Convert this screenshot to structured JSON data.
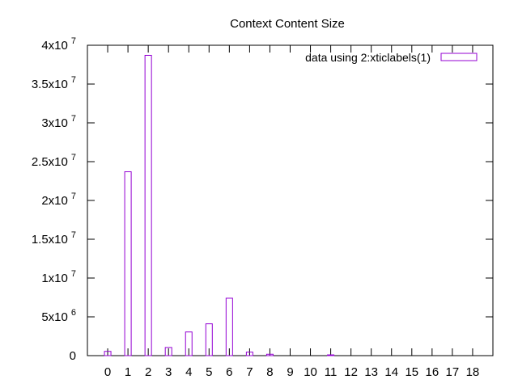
{
  "chart_data": {
    "type": "bar",
    "title": "Context Content Size",
    "xlabel": "",
    "ylabel": "",
    "categories": [
      "0",
      "1",
      "2",
      "3",
      "4",
      "5",
      "6",
      "7",
      "8",
      "9",
      "10",
      "11",
      "12",
      "13",
      "14",
      "15",
      "16",
      "17",
      "18"
    ],
    "series": [
      {
        "name": "data using 2:xticlabels(1)",
        "values": [
          550000,
          23700000,
          38700000,
          1050000,
          3050000,
          4100000,
          7400000,
          450000,
          180000,
          0,
          0,
          100000,
          0,
          0,
          0,
          0,
          0,
          0,
          0
        ]
      }
    ],
    "ylim": [
      0,
      40000000
    ],
    "ytick_values": [
      0,
      5000000,
      10000000,
      15000000,
      20000000,
      25000000,
      30000000,
      35000000,
      40000000
    ],
    "ytick_labels": [
      {
        "base": "0",
        "exp": ""
      },
      {
        "base": "5x10",
        "exp": "6"
      },
      {
        "base": "1x10",
        "exp": "7"
      },
      {
        "base": "1.5x10",
        "exp": "7"
      },
      {
        "base": "2x10",
        "exp": "7"
      },
      {
        "base": "2.5x10",
        "exp": "7"
      },
      {
        "base": "3x10",
        "exp": "7"
      },
      {
        "base": "3.5x10",
        "exp": "7"
      },
      {
        "base": "4x10",
        "exp": "7"
      }
    ],
    "grid": false,
    "legend_position": "top-right",
    "colors": {
      "bar": "#9400d3",
      "axis": "#000000"
    }
  }
}
